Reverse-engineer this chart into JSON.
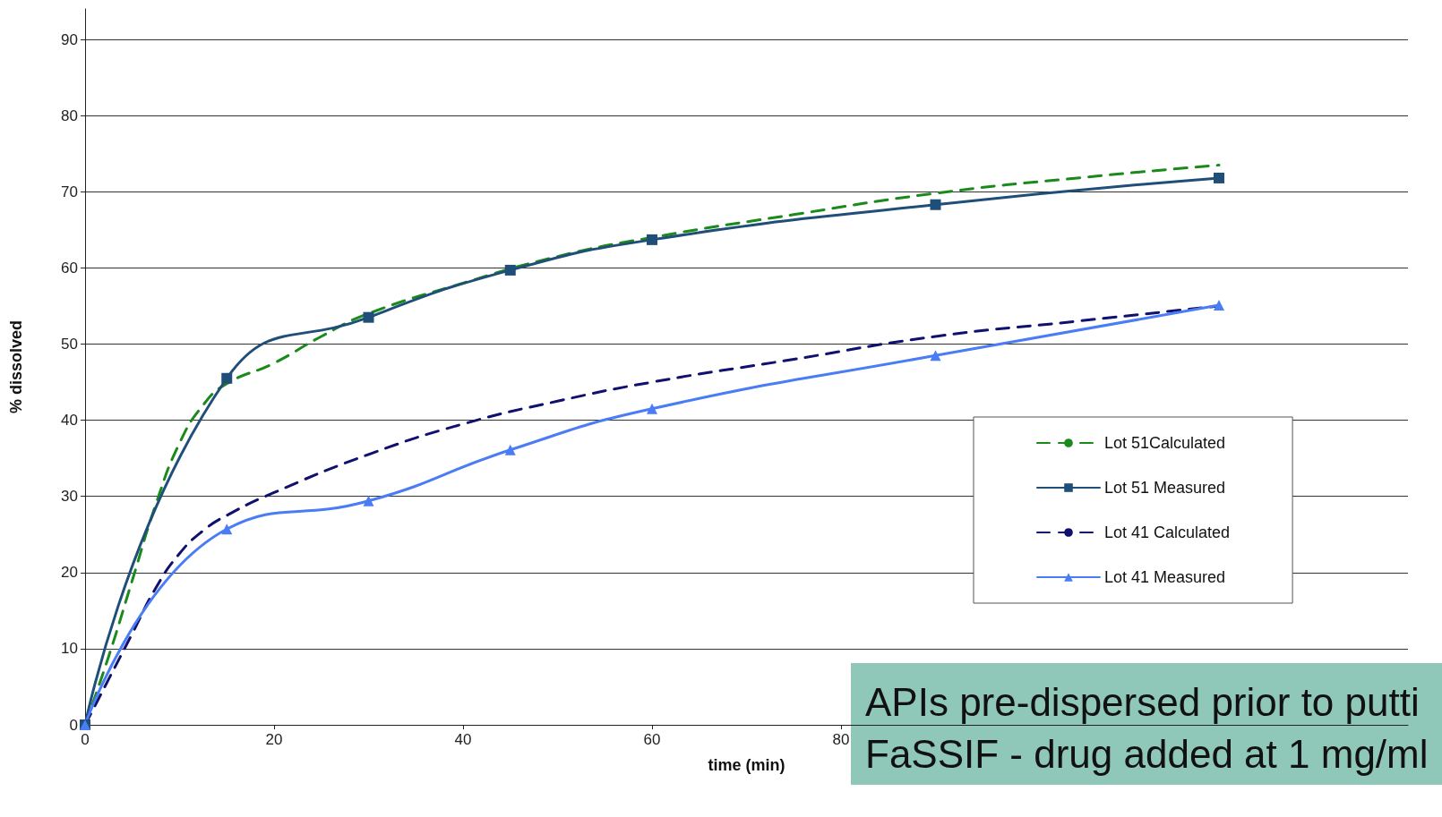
{
  "chart_data": {
    "type": "line",
    "xlabel": "time (min)",
    "ylabel": "% dissolved",
    "xlim": [
      0,
      140
    ],
    "xticks": [
      0,
      20,
      40,
      60,
      80
    ],
    "ylim": [
      0,
      94
    ],
    "yticks": [
      0,
      10,
      20,
      30,
      40,
      50,
      60,
      70,
      80,
      90
    ],
    "grid": "y",
    "legend": "right",
    "series": [
      {
        "name": "Lot 51Calculated",
        "color": "#1a8a1a",
        "line_style": "dashed",
        "marker": "none",
        "x": [
          0,
          2.5,
          5,
          7.5,
          10,
          12.5,
          15,
          20,
          25,
          30,
          40,
          50,
          60,
          75,
          90,
          105,
          120
        ],
        "values": [
          0,
          9,
          19,
          29,
          37,
          42,
          44.8,
          47.5,
          51,
          54,
          58,
          61.5,
          64,
          67,
          69.8,
          71.8,
          73.5
        ]
      },
      {
        "name": "Lot 51 Measured",
        "color": "#1f4e79",
        "line_style": "solid",
        "marker": "square",
        "x": [
          0,
          15,
          30,
          45,
          60,
          90,
          120
        ],
        "values": [
          0,
          45.5,
          53.5,
          59.7,
          63.7,
          68.3,
          71.8
        ]
      },
      {
        "name": "Lot 41 Calculated",
        "color": "#10106e",
        "line_style": "dashed",
        "marker": "none",
        "x": [
          0,
          2.5,
          5,
          7.5,
          10,
          12.5,
          15,
          20,
          30,
          40,
          50,
          60,
          75,
          90,
          105,
          120
        ],
        "values": [
          0,
          6,
          12,
          18,
          22.5,
          25.5,
          27.5,
          30.5,
          35.5,
          39.5,
          42.5,
          45,
          48,
          51,
          53,
          55
        ]
      },
      {
        "name": "Lot 41 Measured",
        "color": "#4a7cf5",
        "line_style": "solid",
        "marker": "triangle",
        "x": [
          0,
          15,
          30,
          45,
          60,
          90,
          120
        ],
        "values": [
          0,
          25.7,
          29.4,
          36.1,
          41.5,
          48.5,
          55.1
        ]
      }
    ],
    "annotations": [
      "APIs pre-dispersed prior to putti\nFaSSIF - drug added at 1 mg/ml"
    ]
  }
}
